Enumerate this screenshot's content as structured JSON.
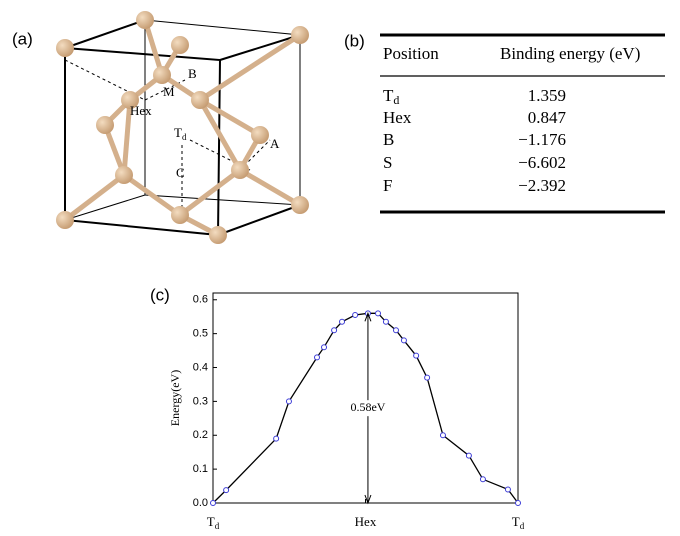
{
  "panels": {
    "a": "(a)",
    "b": "(b)",
    "c": "(c)"
  },
  "structure": {
    "labels": {
      "B": "B",
      "M": "M",
      "Hex": "Hex",
      "Td": {
        "text": "T",
        "subscript": "d"
      },
      "A": "A",
      "C": "C"
    }
  },
  "table": {
    "header": [
      "Position",
      "Binding energy (eV)"
    ],
    "rows": [
      [
        {
          "text": "T",
          "subscript": "d"
        },
        "1.359"
      ],
      [
        "Hex",
        "0.847"
      ],
      [
        "B",
        "−1.176"
      ],
      [
        "S",
        "−6.602"
      ],
      [
        "F",
        "−2.392"
      ]
    ]
  },
  "chart_data": {
    "type": "line",
    "y_label": "Energy(eV)",
    "x": [
      0,
      0.043,
      0.207,
      0.249,
      0.341,
      0.364,
      0.397,
      0.423,
      0.466,
      0.508,
      0.541,
      0.567,
      0.6,
      0.626,
      0.666,
      0.702,
      0.754,
      0.839,
      0.885,
      0.967,
      1
    ],
    "series": [
      {
        "color": "#000000",
        "marker_color": "#3b3bd6",
        "values": [
          0,
          0.038,
          0.19,
          0.3,
          0.43,
          0.46,
          0.51,
          0.535,
          0.555,
          0.56,
          0.56,
          0.535,
          0.51,
          0.48,
          0.435,
          0.37,
          0.2,
          0.14,
          0.07,
          0.04,
          0
        ]
      }
    ],
    "xlim": [
      0,
      1
    ],
    "xticks": [
      {
        "value": 0,
        "label": "T",
        "subscript": "d"
      },
      {
        "value": 0.5,
        "label": "Hex"
      },
      {
        "value": 1,
        "label": "T",
        "subscript": "d"
      }
    ],
    "ylim": [
      0,
      0.62
    ],
    "yticks": [
      {
        "value": 0,
        "label": "0.0"
      },
      0.1,
      0.2,
      0.3,
      0.4,
      0.5,
      0.6
    ],
    "annotation": {
      "text": "0.58eV",
      "x": 0.508,
      "y_from": 0.56,
      "y_to": 0
    }
  }
}
